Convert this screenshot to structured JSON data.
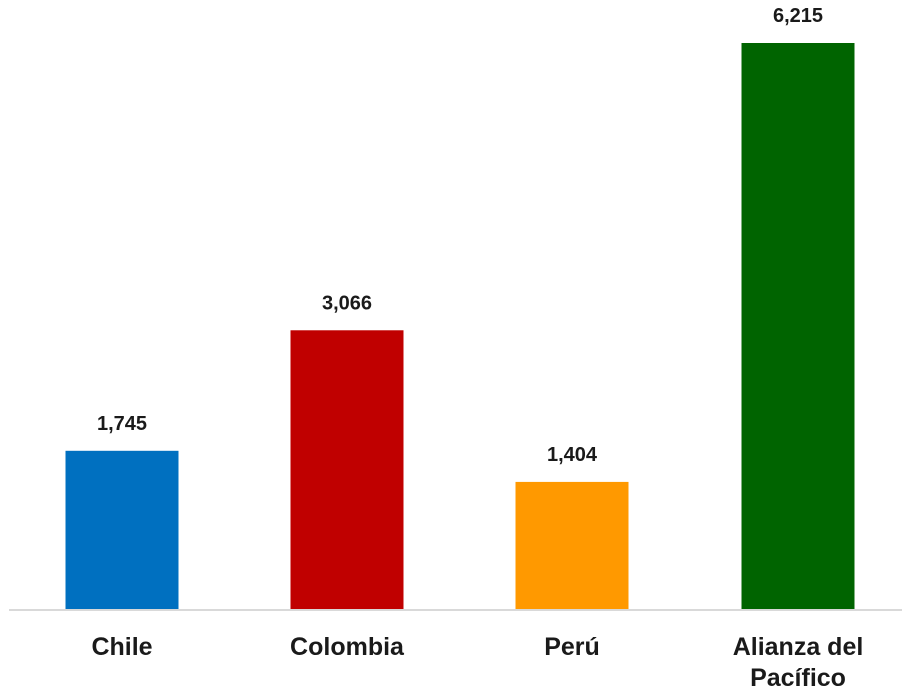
{
  "chart_data": {
    "type": "bar",
    "categories": [
      [
        "Chile"
      ],
      [
        "Colombia"
      ],
      [
        "Perú"
      ],
      [
        "Alianza del",
        "Pacífico"
      ]
    ],
    "values": [
      1745,
      3066,
      1404,
      6215
    ],
    "value_labels": [
      "1,745",
      "3,066",
      "1,404",
      "6,215"
    ],
    "colors": [
      "#0070C0",
      "#C00000",
      "#FF9900",
      "#006400"
    ],
    "ylim": [
      0,
      6215
    ],
    "title": "",
    "xlabel": "",
    "ylabel": "",
    "grid": false,
    "legend": "none"
  }
}
